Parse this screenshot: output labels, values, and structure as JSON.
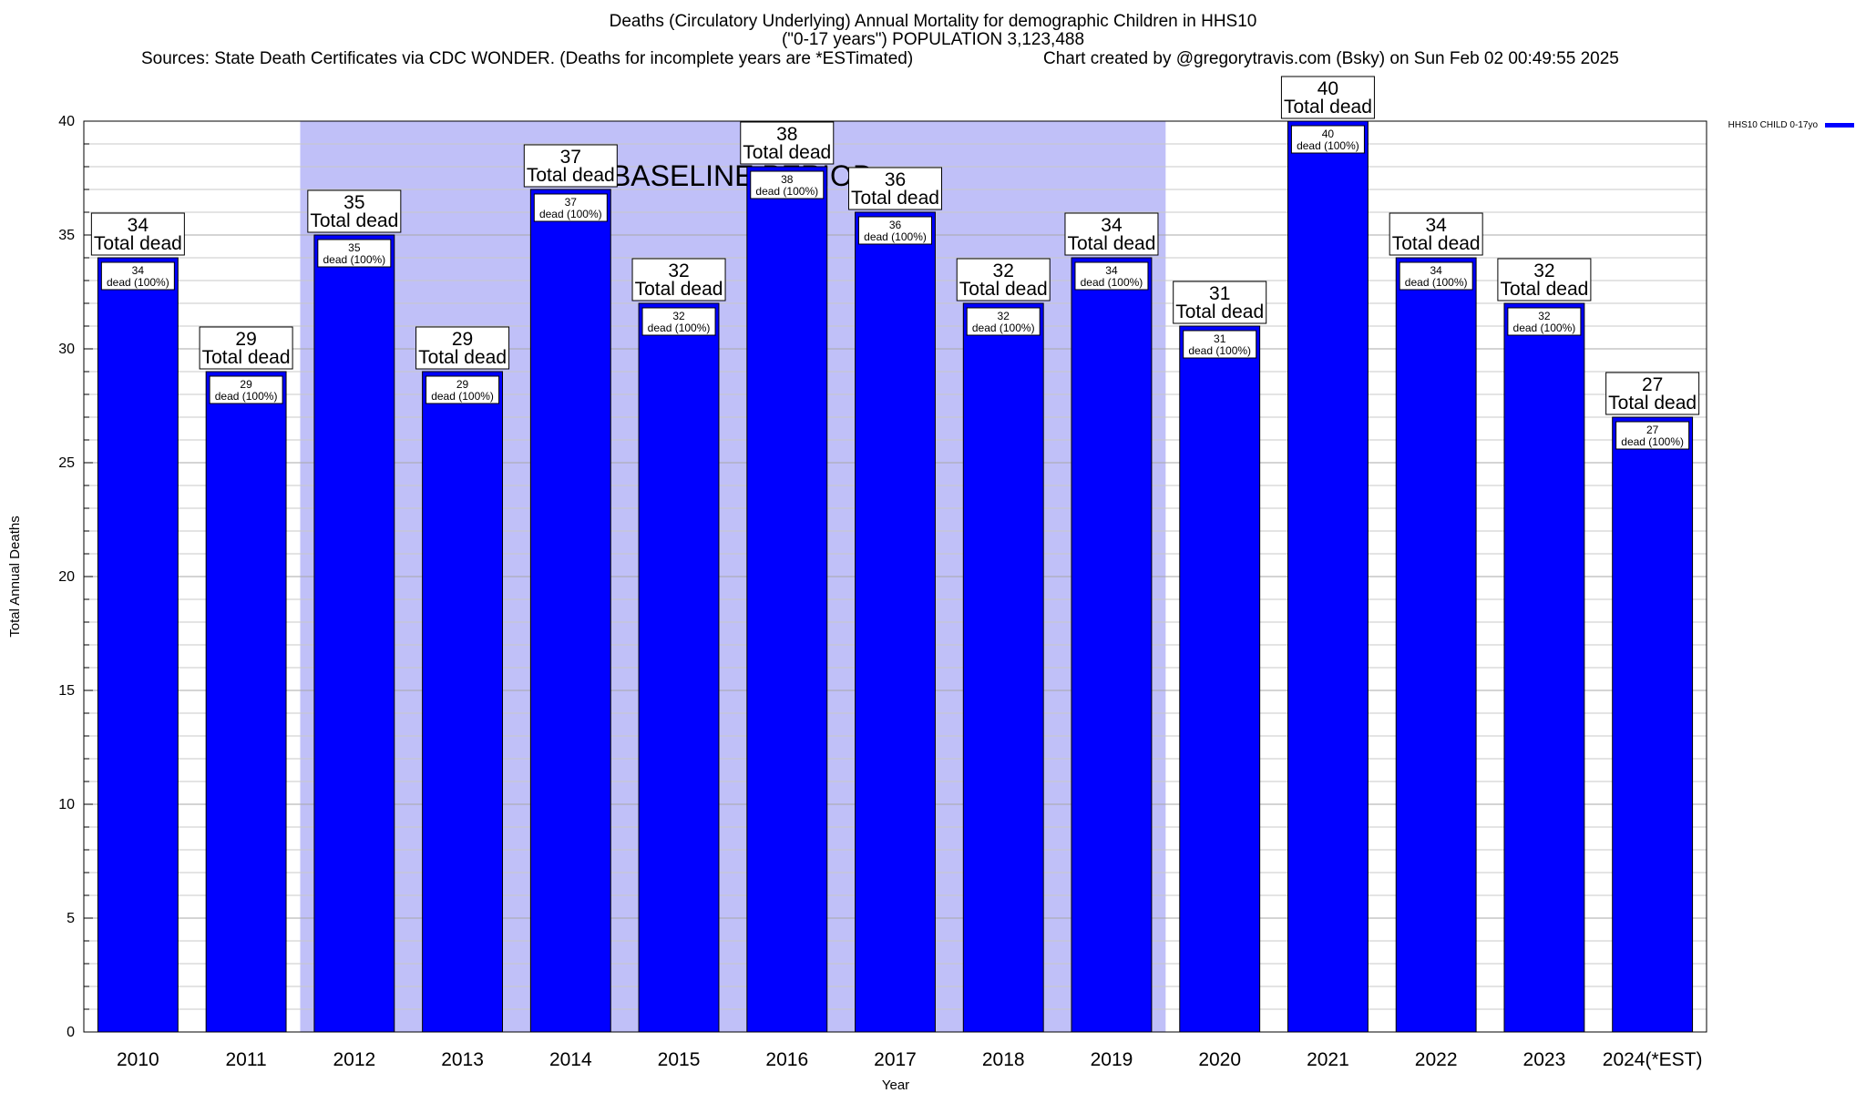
{
  "header": {
    "title_line1": "Deaths (Circulatory Underlying) Annual Mortality for demographic Children in HHS10",
    "title_line2": "(\"0-17 years\") POPULATION 3,123,488",
    "sources": "Sources: State Death Certificates via CDC WONDER. (Deaths for incomplete years are *ESTimated)",
    "credit": "Chart created by @gregorytravis.com (Bsky) on Sun Feb 02 00:49:55 2025"
  },
  "chart_data": {
    "type": "bar",
    "title": "Deaths (Circulatory Underlying) Annual Mortality for demographic Children in HHS10",
    "xlabel": "Year",
    "ylabel": "Total Annual Deaths",
    "ylim": [
      0,
      40
    ],
    "yticks": [
      0,
      5,
      10,
      15,
      20,
      25,
      30,
      35,
      40
    ],
    "grid": true,
    "legend_position": "top-right",
    "categories": [
      "2010",
      "2011",
      "2012",
      "2013",
      "2014",
      "2015",
      "2016",
      "2017",
      "2018",
      "2019",
      "2020",
      "2021",
      "2022",
      "2023",
      "2024(*EST)"
    ],
    "series": [
      {
        "name": "HHS10 CHILD 0-17yo",
        "color": "#0000ff",
        "values": [
          34,
          29,
          35,
          29,
          37,
          32,
          38,
          36,
          32,
          34,
          31,
          40,
          34,
          32,
          27
        ]
      }
    ],
    "total_label_suffix": "Total dead",
    "inner_label_suffix": "dead (100%)",
    "shaded_region": {
      "label": "BASELINE PERIOD",
      "from_category": "2012",
      "to_category": "2019",
      "color": "#c0c0f8"
    }
  }
}
